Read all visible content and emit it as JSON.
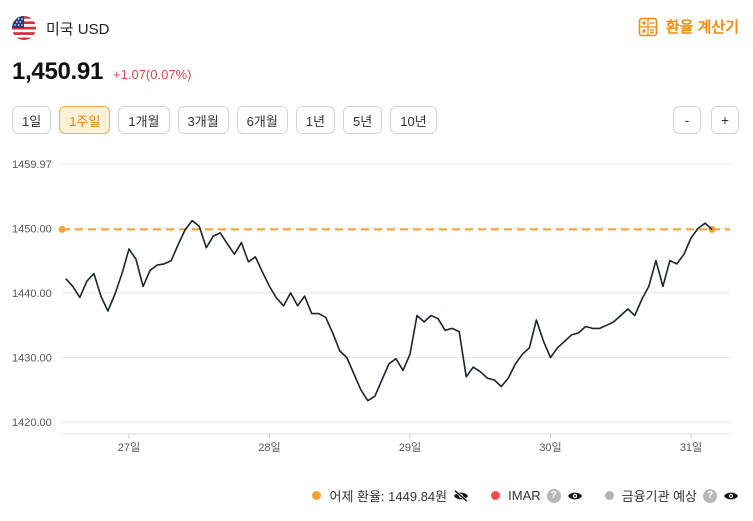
{
  "header": {
    "currency_name": "미국 USD",
    "flag_icon": "us-flag-icon",
    "calculator_label": "환율 계산기",
    "calculator_icon": "calculator-icon",
    "accent_color": "#f08c0a"
  },
  "price": {
    "value": "1,450.91",
    "change": "+1.07(0.07%)",
    "change_color": "#e5484d"
  },
  "periods": {
    "active_index": 1,
    "items": [
      {
        "label": "1일"
      },
      {
        "label": "1주일"
      },
      {
        "label": "1개월"
      },
      {
        "label": "3개월"
      },
      {
        "label": "6개월"
      },
      {
        "label": "1년"
      },
      {
        "label": "5년"
      },
      {
        "label": "10년"
      }
    ]
  },
  "zoom": {
    "out_label": "-",
    "in_label": "+"
  },
  "legend": {
    "yesterday": {
      "label": "어제 환율: 1449.84원",
      "color": "#f5a234",
      "icon": "eye-slash-icon"
    },
    "imar": {
      "label": "IMAR",
      "color": "#ef4f4f",
      "help": "?",
      "icon": "eye-icon"
    },
    "bank": {
      "label": "금융기관 예상",
      "color": "#b4b4b4",
      "help": "?",
      "icon": "eye-icon"
    }
  },
  "chart_data": {
    "type": "line",
    "x_categories": [
      "27일",
      "28일",
      "29일",
      "30일",
      "31일"
    ],
    "y_ticks": [
      1420.0,
      1430.0,
      1440.0,
      1450.0,
      1459.97
    ],
    "y_tick_labels": [
      "1420.00",
      "1430.00",
      "1440.00",
      "1450.00",
      "1459.97"
    ],
    "ylim": [
      1420.0,
      1459.97
    ],
    "reference_line": {
      "value": 1449.84,
      "color": "#f5a234",
      "style": "dashed"
    },
    "line_color": "#1b2432",
    "grid": true,
    "series": [
      {
        "values": [
          [
            26.55,
            1442.2
          ],
          [
            26.6,
            1441.0
          ],
          [
            26.65,
            1439.3
          ],
          [
            26.7,
            1441.8
          ],
          [
            26.75,
            1443.0
          ],
          [
            26.8,
            1439.5
          ],
          [
            26.85,
            1437.2
          ],
          [
            26.9,
            1439.8
          ],
          [
            26.95,
            1443.0
          ],
          [
            27.0,
            1446.8
          ],
          [
            27.05,
            1445.2
          ],
          [
            27.1,
            1441.0
          ],
          [
            27.15,
            1443.5
          ],
          [
            27.2,
            1444.3
          ],
          [
            27.25,
            1444.5
          ],
          [
            27.3,
            1445.0
          ],
          [
            27.35,
            1447.5
          ],
          [
            27.4,
            1449.8
          ],
          [
            27.45,
            1451.2
          ],
          [
            27.5,
            1450.3
          ],
          [
            27.55,
            1447.0
          ],
          [
            27.6,
            1448.8
          ],
          [
            27.65,
            1449.3
          ],
          [
            27.7,
            1447.6
          ],
          [
            27.75,
            1446.0
          ],
          [
            27.8,
            1447.8
          ],
          [
            27.85,
            1444.8
          ],
          [
            27.9,
            1445.6
          ],
          [
            27.95,
            1443.2
          ],
          [
            28.0,
            1441.0
          ],
          [
            28.05,
            1439.2
          ],
          [
            28.1,
            1438.0
          ],
          [
            28.15,
            1440.0
          ],
          [
            28.2,
            1438.0
          ],
          [
            28.25,
            1439.5
          ],
          [
            28.3,
            1436.8
          ],
          [
            28.35,
            1436.8
          ],
          [
            28.4,
            1436.2
          ],
          [
            28.45,
            1433.8
          ],
          [
            28.5,
            1431.0
          ],
          [
            28.55,
            1430.0
          ],
          [
            28.6,
            1427.5
          ],
          [
            28.65,
            1425.0
          ],
          [
            28.7,
            1423.3
          ],
          [
            28.75,
            1424.0
          ],
          [
            28.8,
            1426.5
          ],
          [
            28.85,
            1429.0
          ],
          [
            28.9,
            1429.8
          ],
          [
            28.95,
            1428.0
          ],
          [
            29.0,
            1430.5
          ],
          [
            29.05,
            1436.5
          ],
          [
            29.1,
            1435.5
          ],
          [
            29.15,
            1436.5
          ],
          [
            29.2,
            1436.0
          ],
          [
            29.25,
            1434.2
          ],
          [
            29.3,
            1434.5
          ],
          [
            29.35,
            1434.0
          ],
          [
            29.4,
            1427.0
          ],
          [
            29.45,
            1428.5
          ],
          [
            29.5,
            1427.8
          ],
          [
            29.55,
            1426.8
          ],
          [
            29.6,
            1426.5
          ],
          [
            29.65,
            1425.5
          ],
          [
            29.7,
            1426.8
          ],
          [
            29.75,
            1429.0
          ],
          [
            29.8,
            1430.5
          ],
          [
            29.85,
            1431.5
          ],
          [
            29.9,
            1435.8
          ],
          [
            29.95,
            1432.5
          ],
          [
            30.0,
            1430.0
          ],
          [
            30.05,
            1431.5
          ],
          [
            30.1,
            1432.5
          ],
          [
            30.15,
            1433.5
          ],
          [
            30.2,
            1433.8
          ],
          [
            30.25,
            1434.8
          ],
          [
            30.3,
            1434.5
          ],
          [
            30.35,
            1434.5
          ],
          [
            30.4,
            1435.0
          ],
          [
            30.45,
            1435.5
          ],
          [
            30.5,
            1436.5
          ],
          [
            30.55,
            1437.5
          ],
          [
            30.6,
            1436.5
          ],
          [
            30.65,
            1439.0
          ],
          [
            30.7,
            1441.0
          ],
          [
            30.75,
            1445.0
          ],
          [
            30.8,
            1441.0
          ],
          [
            30.85,
            1445.0
          ],
          [
            30.9,
            1444.5
          ],
          [
            30.95,
            1446.0
          ],
          [
            31.0,
            1448.5
          ],
          [
            31.05,
            1450.0
          ],
          [
            31.1,
            1450.8
          ],
          [
            31.15,
            1449.8
          ]
        ]
      }
    ]
  }
}
